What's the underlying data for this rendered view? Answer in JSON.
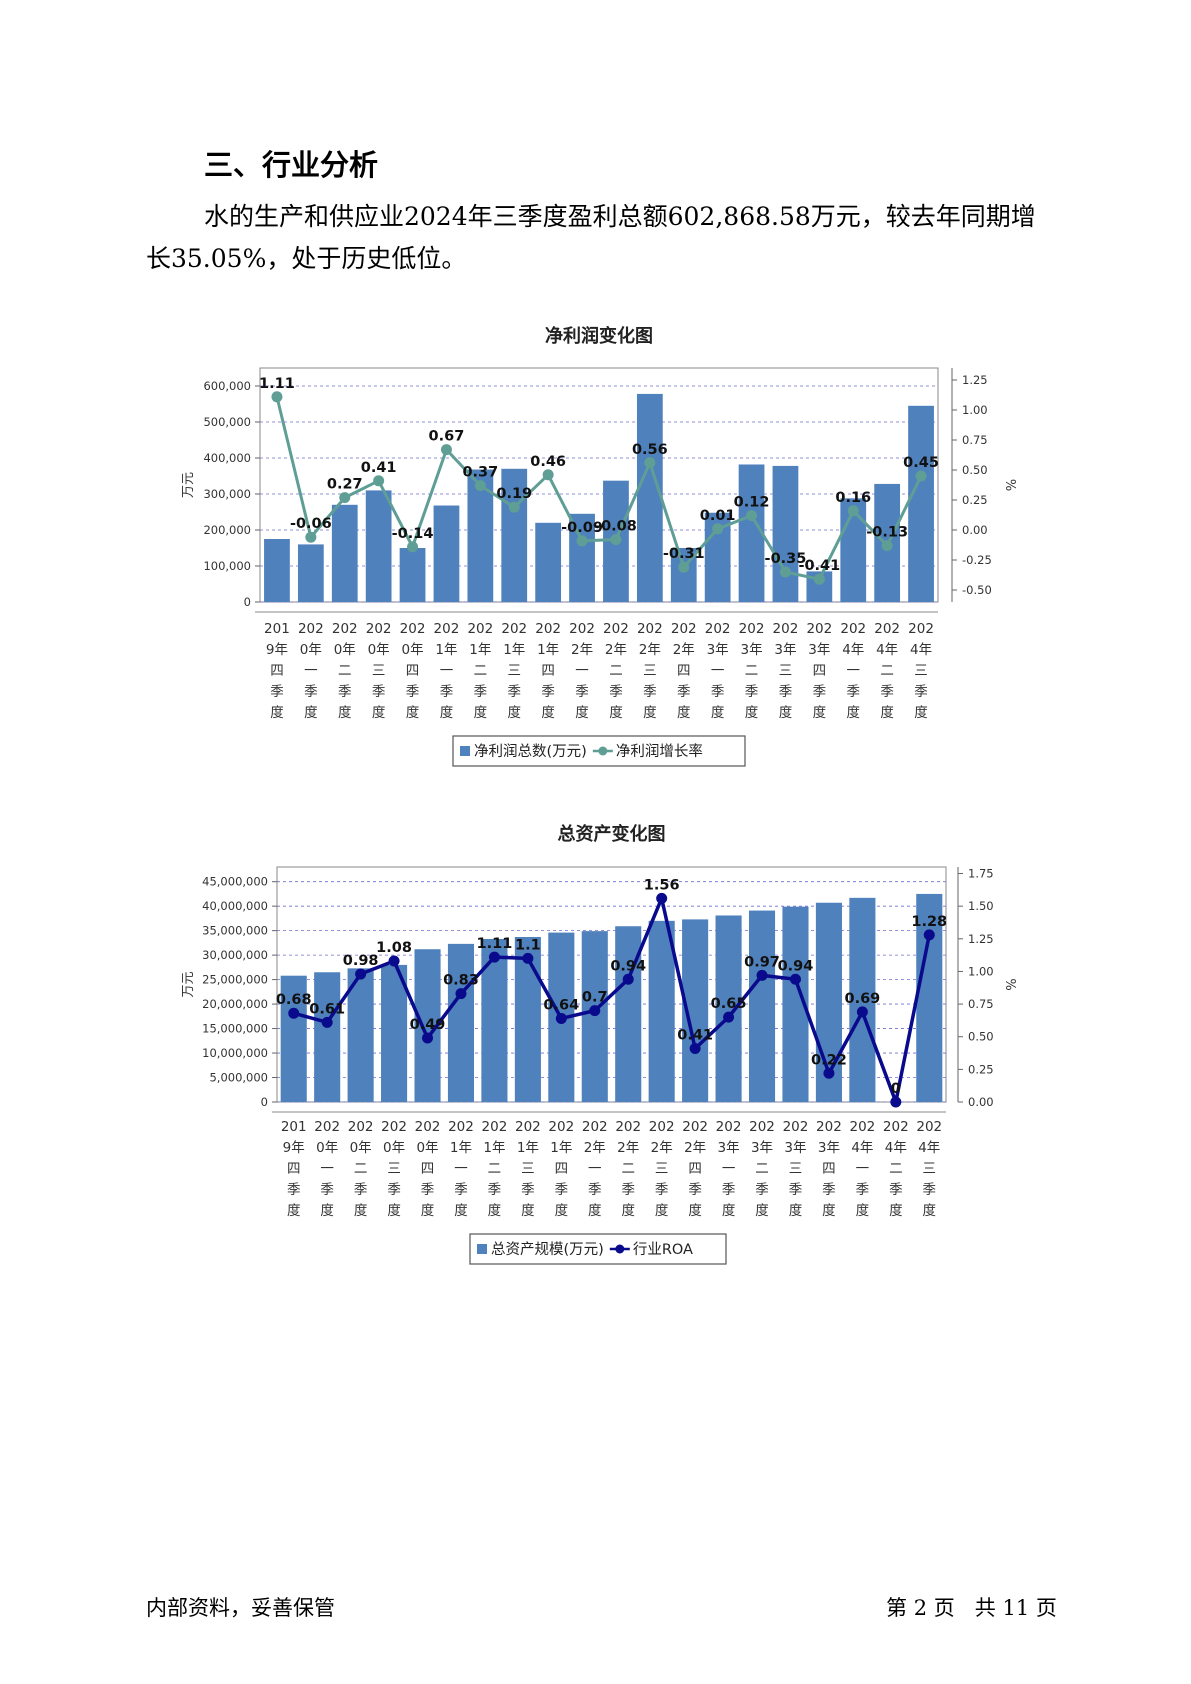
{
  "section": {
    "heading": "三、行业分析"
  },
  "paragraph": "水的生产和供应业2024年三季度盈利总额602,868.58万元，较去年同期增长35.05%，处于历史低位。",
  "footer": {
    "left": "内部资料，妥善保管",
    "page_label_pre": "第",
    "page_num": "2",
    "page_label_mid": "页   共",
    "page_total": "11",
    "page_label_post": "页"
  },
  "chart_data": [
    {
      "type": "bar",
      "title": "净利润变化图",
      "ylabel": "万元",
      "y2label": "%",
      "ylim": [
        0,
        650000
      ],
      "y2lim": [
        -0.6,
        1.35
      ],
      "yticks": [
        "0",
        "100,000",
        "200,000",
        "300,000",
        "400,000",
        "500,000",
        "600,000"
      ],
      "y2ticks": [
        "-0.50",
        "-0.25",
        "0.00",
        "0.25",
        "0.50",
        "0.75",
        "1.00",
        "1.25"
      ],
      "categories": [
        [
          "201",
          "9年",
          "四",
          "季",
          "度"
        ],
        [
          "202",
          "0年",
          "一",
          "季",
          "度"
        ],
        [
          "202",
          "0年",
          "二",
          "季",
          "度"
        ],
        [
          "202",
          "0年",
          "三",
          "季",
          "度"
        ],
        [
          "202",
          "0年",
          "四",
          "季",
          "度"
        ],
        [
          "202",
          "1年",
          "一",
          "季",
          "度"
        ],
        [
          "202",
          "1年",
          "二",
          "季",
          "度"
        ],
        [
          "202",
          "1年",
          "三",
          "季",
          "度"
        ],
        [
          "202",
          "1年",
          "四",
          "季",
          "度"
        ],
        [
          "202",
          "2年",
          "一",
          "季",
          "度"
        ],
        [
          "202",
          "2年",
          "二",
          "季",
          "度"
        ],
        [
          "202",
          "2年",
          "三",
          "季",
          "度"
        ],
        [
          "202",
          "2年",
          "四",
          "季",
          "度"
        ],
        [
          "202",
          "3年",
          "一",
          "季",
          "度"
        ],
        [
          "202",
          "3年",
          "二",
          "季",
          "度"
        ],
        [
          "202",
          "3年",
          "三",
          "季",
          "度"
        ],
        [
          "202",
          "3年",
          "四",
          "季",
          "度"
        ],
        [
          "202",
          "4年",
          "一",
          "季",
          "度"
        ],
        [
          "202",
          "4年",
          "二",
          "季",
          "度"
        ],
        [
          "202",
          "4年",
          "三",
          "季",
          "度"
        ]
      ],
      "series": [
        {
          "name": "净利润总数(万元)",
          "kind": "bar",
          "color": "#4f81bd",
          "values": [
            175000,
            160000,
            270000,
            310000,
            150000,
            268000,
            368000,
            370000,
            220000,
            245000,
            337000,
            578000,
            150000,
            248000,
            382000,
            378000,
            85000,
            288000,
            328000,
            545000
          ]
        },
        {
          "name": "净利润增长率",
          "kind": "line",
          "color": "#5f9e95",
          "values": [
            1.11,
            -0.06,
            0.27,
            0.41,
            -0.14,
            0.67,
            0.37,
            0.19,
            0.46,
            -0.09,
            -0.08,
            0.56,
            -0.31,
            0.01,
            0.12,
            -0.35,
            -0.41,
            0.16,
            -0.13,
            0.45
          ],
          "labels": [
            "1.11",
            "-0.06",
            "0.27",
            "0.41",
            "-0.14",
            "0.67",
            "0.37",
            "0.19",
            "0.46",
            "-0.09",
            "-0.08",
            "0.56",
            "-0.31",
            "0.01",
            "0.12",
            "-0.35",
            "-0.41",
            "0.16",
            "-0.13",
            "0.45"
          ]
        }
      ],
      "grid": true,
      "legend": "bottom"
    },
    {
      "type": "bar",
      "title": "总资产变化图",
      "ylabel": "万元",
      "y2label": "%",
      "ylim": [
        0,
        48000000
      ],
      "y2lim": [
        0,
        1.8
      ],
      "yticks": [
        "0",
        "5,000,000",
        "10,000,000",
        "15,000,000",
        "20,000,000",
        "25,000,000",
        "30,000,000",
        "35,000,000",
        "40,000,000",
        "45,000,000"
      ],
      "y2ticks": [
        "0.00",
        "0.25",
        "0.50",
        "0.75",
        "1.00",
        "1.25",
        "1.50",
        "1.75"
      ],
      "categories": [
        [
          "201",
          "9年",
          "四",
          "季",
          "度"
        ],
        [
          "202",
          "0年",
          "一",
          "季",
          "度"
        ],
        [
          "202",
          "0年",
          "二",
          "季",
          "度"
        ],
        [
          "202",
          "0年",
          "三",
          "季",
          "度"
        ],
        [
          "202",
          "0年",
          "四",
          "季",
          "度"
        ],
        [
          "202",
          "1年",
          "一",
          "季",
          "度"
        ],
        [
          "202",
          "1年",
          "二",
          "季",
          "度"
        ],
        [
          "202",
          "1年",
          "三",
          "季",
          "度"
        ],
        [
          "202",
          "1年",
          "四",
          "季",
          "度"
        ],
        [
          "202",
          "2年",
          "一",
          "季",
          "度"
        ],
        [
          "202",
          "2年",
          "二",
          "季",
          "度"
        ],
        [
          "202",
          "2年",
          "三",
          "季",
          "度"
        ],
        [
          "202",
          "2年",
          "四",
          "季",
          "度"
        ],
        [
          "202",
          "3年",
          "一",
          "季",
          "度"
        ],
        [
          "202",
          "3年",
          "二",
          "季",
          "度"
        ],
        [
          "202",
          "3年",
          "三",
          "季",
          "度"
        ],
        [
          "202",
          "3年",
          "四",
          "季",
          "度"
        ],
        [
          "202",
          "4年",
          "一",
          "季",
          "度"
        ],
        [
          "202",
          "4年",
          "二",
          "季",
          "度"
        ],
        [
          "202",
          "4年",
          "三",
          "季",
          "度"
        ]
      ],
      "series": [
        {
          "name": "总资产规模(万元)",
          "kind": "bar",
          "color": "#4f81bd",
          "values": [
            25800000,
            26500000,
            27300000,
            28000000,
            31200000,
            32300000,
            33300000,
            33700000,
            34600000,
            34900000,
            35900000,
            37000000,
            37300000,
            38100000,
            39100000,
            39900000,
            40700000,
            41700000,
            null,
            42500000
          ]
        },
        {
          "name": "行业ROA",
          "kind": "line",
          "color": "#0a0a8c",
          "values": [
            0.68,
            0.61,
            0.98,
            1.08,
            0.49,
            0.83,
            1.11,
            1.1,
            0.64,
            0.7,
            0.94,
            1.56,
            0.41,
            0.65,
            0.97,
            0.94,
            0.22,
            0.69,
            0,
            1.28
          ],
          "labels": [
            "0.68",
            "0.61",
            "0.98",
            "1.08",
            "0.49",
            "0.83",
            "1.11",
            "1.1",
            "0.64",
            "0.7",
            "0.94",
            "1.56",
            "0.41",
            "0.65",
            "0.97",
            "0.94",
            "0.22",
            "0.69",
            "0",
            "1.28"
          ]
        }
      ],
      "grid": true,
      "legend": "bottom"
    }
  ]
}
